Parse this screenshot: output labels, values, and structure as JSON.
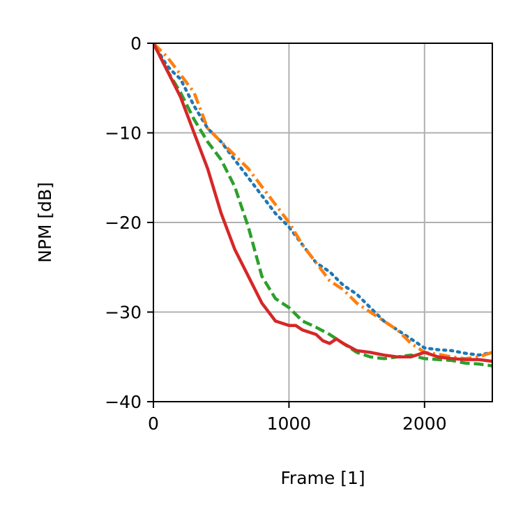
{
  "chart_data": {
    "type": "line",
    "title": "",
    "xlabel": "Frame [1]",
    "ylabel": "NPM [dB]",
    "xlim": [
      0,
      2500
    ],
    "ylim": [
      -40,
      0
    ],
    "xticks": [
      0,
      1000,
      2000
    ],
    "yticks": [
      0,
      -10,
      -20,
      -30,
      -40
    ],
    "xtick_labels": [
      "0",
      "1000",
      "2000"
    ],
    "ytick_labels": [
      "0",
      "−10",
      "−20",
      "−30",
      "−40"
    ],
    "grid": true,
    "legend": "none",
    "series": [
      {
        "color": "#1f77b4",
        "linestyle": "dotted",
        "x": [
          0,
          100,
          150,
          200,
          300,
          400,
          500,
          600,
          700,
          800,
          900,
          1000,
          1100,
          1200,
          1300,
          1400,
          1500,
          1600,
          1700,
          1800,
          1900,
          2000,
          2100,
          2200,
          2300,
          2400,
          2500
        ],
        "y": [
          0,
          -2.5,
          -3.3,
          -4,
          -7,
          -9.5,
          -11,
          -13,
          -15,
          -17,
          -19,
          -20.5,
          -22.5,
          -24.5,
          -25.5,
          -27,
          -28,
          -29.5,
          -31,
          -32,
          -33,
          -34,
          -34.2,
          -34.3,
          -34.6,
          -34.8,
          -34.5
        ]
      },
      {
        "color": "#ff7f0e",
        "linestyle": "dashdot",
        "x": [
          0,
          100,
          150,
          200,
          250,
          300,
          400,
          500,
          600,
          700,
          800,
          900,
          1000,
          1100,
          1200,
          1300,
          1400,
          1500,
          1600,
          1700,
          1800,
          1900,
          2000,
          2100,
          2200,
          2300,
          2400,
          2500
        ],
        "y": [
          0,
          -1.5,
          -2.5,
          -3.5,
          -4.5,
          -5.5,
          -9.5,
          -11,
          -12.5,
          -14,
          -16,
          -18,
          -20,
          -22.5,
          -24.5,
          -26.5,
          -27.5,
          -29,
          -30,
          -31,
          -32,
          -33.5,
          -34.5,
          -34.7,
          -35,
          -35.2,
          -35,
          -34.5
        ]
      },
      {
        "color": "#2ca02c",
        "linestyle": "dashed",
        "x": [
          0,
          100,
          200,
          300,
          400,
          500,
          600,
          700,
          800,
          900,
          1000,
          1100,
          1200,
          1300,
          1400,
          1500,
          1600,
          1700,
          1800,
          1900,
          2000,
          2100,
          2200,
          2300,
          2400,
          2500
        ],
        "y": [
          0,
          -3,
          -5.5,
          -8.5,
          -11,
          -13,
          -16,
          -20.5,
          -26,
          -28.5,
          -29.5,
          -31,
          -31.7,
          -32.5,
          -33.5,
          -34.5,
          -35,
          -35.2,
          -35,
          -34.8,
          -35.2,
          -35.3,
          -35.4,
          -35.7,
          -35.8,
          -36
        ]
      },
      {
        "color": "#d62728",
        "linestyle": "solid",
        "x": [
          0,
          50,
          100,
          150,
          200,
          250,
          300,
          400,
          500,
          600,
          700,
          800,
          900,
          1000,
          1050,
          1100,
          1200,
          1250,
          1300,
          1350,
          1400,
          1500,
          1600,
          1700,
          1800,
          1900,
          2000,
          2100,
          2200,
          2300,
          2400,
          2500
        ],
        "y": [
          0,
          -1.5,
          -3,
          -4.5,
          -6,
          -8,
          -10,
          -14,
          -19,
          -23,
          -26,
          -29,
          -31,
          -31.5,
          -31.5,
          -32,
          -32.5,
          -33.2,
          -33.5,
          -33,
          -33.5,
          -34.3,
          -34.5,
          -34.8,
          -35,
          -35,
          -34.5,
          -35,
          -35.2,
          -35.3,
          -35.3,
          -35.5
        ]
      }
    ]
  }
}
